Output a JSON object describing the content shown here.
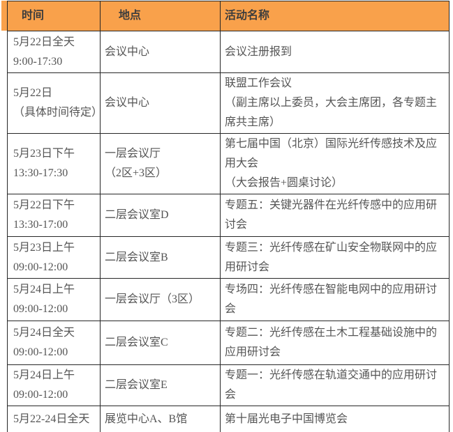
{
  "colors": {
    "header_bg": "#F9A14B",
    "header_text": "#3d3d3d",
    "body_text": "#555555",
    "border": "#262626",
    "page_bg": "#ffffff"
  },
  "table": {
    "columns": [
      {
        "label": "时间"
      },
      {
        "label": "地点"
      },
      {
        "label": "活动名称"
      }
    ],
    "rows": [
      {
        "time": "5月22日全天\n9:00-17:30",
        "location": "会议中心",
        "activity": "会议注册报到"
      },
      {
        "time": "5月22日\n（具体时间待定）",
        "location": "会议中心",
        "activity": "联盟工作会议\n（副主席以上委员，大会主席团，各专题主席共主席）"
      },
      {
        "time": "5月23日下午\n13:30-17:30",
        "location": "一层会议厅\n（2区+3区）",
        "activity": "第七届中国（北京）国际光纤传感技术及应用大会\n（大会报告+圆桌讨论）"
      },
      {
        "time": "5月22日下午\n13:30-17:00",
        "location": "二层会议室D",
        "activity": "专题五：关键光器件在光纤传感中的应用研讨会"
      },
      {
        "time": "5月23日上午\n09:00-12:00",
        "location": "二层会议室B",
        "activity": "专题三：光纤传感在矿山安全物联网中的应用研讨会"
      },
      {
        "time": "5月24日上午\n09:00-12:00",
        "location": "一层会议厅（3区）",
        "activity": "专场四：光纤传感在智能电网中的应用研讨会"
      },
      {
        "time": "5月24日全天\n09:00-12:00",
        "location": "二层会议室C",
        "activity": "专题二：光纤传感在土木工程基础设施中的应用研讨会"
      },
      {
        "time": "5月24日上午\n09:00-12:00",
        "location": "二层会议室E",
        "activity": "专题一：光纤传感在轨道交通中的应用研讨会"
      },
      {
        "time": "5月22-24日全天",
        "location": "展览中心A、B馆",
        "activity": "第十届光电子中国博览会"
      }
    ]
  }
}
